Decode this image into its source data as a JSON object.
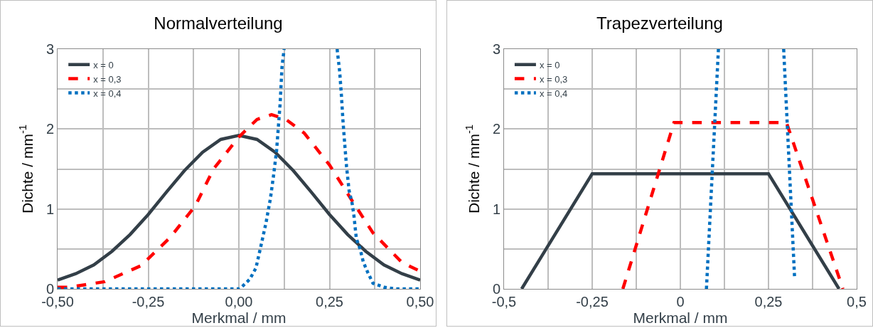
{
  "chart_data": [
    {
      "type": "line",
      "title": "Normalverteilung",
      "xlabel": "Merkmal / mm",
      "ylabel": "Dichte / mm$^{-1}$",
      "xlim": [
        -0.5,
        0.5
      ],
      "ylim": [
        0,
        3
      ],
      "xticks": [
        {
          "value": -0.5,
          "label": "-0,50"
        },
        {
          "value": -0.375,
          "label": null
        },
        {
          "value": -0.25,
          "label": "-0,25"
        },
        {
          "value": -0.125,
          "label": null
        },
        {
          "value": 0,
          "label": "0,00"
        },
        {
          "value": 0.125,
          "label": null
        },
        {
          "value": 0.25,
          "label": "0,25"
        },
        {
          "value": 0.375,
          "label": null
        },
        {
          "value": 0.5,
          "label": "0,50"
        }
      ],
      "yticks": [
        0,
        {
          "value": 0.5,
          "label": null
        },
        1,
        {
          "value": 1.5,
          "label": null
        },
        2,
        {
          "value": 2.5,
          "label": null
        },
        3
      ],
      "grid": true,
      "legend": "top left",
      "marker": "none",
      "series": [
        {
          "name": "x = 0",
          "color": "#333f48",
          "line_style": "solid",
          "x": [
            -0.5,
            -0.45,
            -0.4,
            -0.35,
            -0.3,
            -0.25,
            -0.2,
            -0.15,
            -0.1,
            -0.05,
            0,
            0.05,
            0.1,
            0.15,
            0.2,
            0.25,
            0.3,
            0.35,
            0.4,
            0.45,
            0.5
          ],
          "values": [
            0.11,
            0.19,
            0.3,
            0.47,
            0.68,
            0.93,
            1.21,
            1.48,
            1.71,
            1.87,
            1.92,
            1.87,
            1.71,
            1.48,
            1.21,
            0.93,
            0.68,
            0.47,
            0.3,
            0.19,
            0.11
          ]
        },
        {
          "name": "x = 0,3",
          "color": "#ff0000",
          "line_style": "dashed",
          "x": [
            -0.5,
            -0.47,
            -0.37,
            -0.27,
            -0.19,
            -0.12,
            -0.07,
            0,
            0.05,
            0.09,
            0.13,
            0.18,
            0.25,
            0.31,
            0.37,
            0.45,
            0.5
          ],
          "values": [
            0.02,
            0.02,
            0.09,
            0.29,
            0.64,
            1.04,
            1.5,
            1.9,
            2.12,
            2.18,
            2.12,
            1.95,
            1.55,
            1.12,
            0.7,
            0.33,
            0.22
          ]
        },
        {
          "name": "x = 0,4",
          "color": "#0070c0",
          "line_style": "dotted",
          "x": [
            -0.5,
            -0.4,
            -0.3,
            -0.2,
            -0.1,
            0,
            0.007,
            0.03,
            0.047,
            0.061,
            0.075,
            0.087,
            0.096,
            0.104,
            0.109,
            0.114,
            0.119,
            0.123,
            0.125,
            0.2,
            0.271,
            0.278,
            0.283,
            0.287,
            0.292,
            0.297,
            0.304,
            0.312,
            0.317,
            0.324,
            0.335,
            0.343,
            0.355,
            0.37,
            0.401,
            0.431,
            0.5
          ],
          "values": [
            0,
            0,
            0,
            0,
            0,
            0,
            0.02,
            0.12,
            0.26,
            0.54,
            0.83,
            1.13,
            1.43,
            1.73,
            2.03,
            2.33,
            2.78,
            2.93,
            3,
            null,
            3,
            2.72,
            2.41,
            2.11,
            1.81,
            1.53,
            1.23,
            1.08,
            0.93,
            0.63,
            0.49,
            0.34,
            0.21,
            0.07,
            0.02,
            0,
            0
          ]
        }
      ]
    },
    {
      "type": "line",
      "title": "Trapezverteilung",
      "xlabel": "Merkmal / mm",
      "ylabel": "Dichte / mm$^{-1}$",
      "xlim": [
        -0.5,
        0.5
      ],
      "ylim": [
        0,
        3
      ],
      "xticks": [
        {
          "value": -0.5,
          "label": "-0,5"
        },
        {
          "value": -0.375,
          "label": null
        },
        {
          "value": -0.25,
          "label": "-0,25"
        },
        {
          "value": -0.125,
          "label": null
        },
        0,
        {
          "value": 0.125,
          "label": null
        },
        {
          "value": 0.25,
          "label": "0,25"
        },
        {
          "value": 0.375,
          "label": null
        },
        {
          "value": 0.5,
          "label": "0,5"
        }
      ],
      "yticks": [
        0,
        {
          "value": 0.5,
          "label": null
        },
        1,
        {
          "value": 1.5,
          "label": null
        },
        2,
        {
          "value": 2.5,
          "label": null
        },
        3
      ],
      "grid": true,
      "legend": "top left",
      "marker": "none",
      "series": [
        {
          "name": "x = 0",
          "color": "#333f48",
          "line_style": "solid",
          "x": [
            -0.45,
            -0.25,
            0.25,
            0.45
          ],
          "values": [
            0,
            1.44,
            1.44,
            0
          ]
        },
        {
          "name": "x = 0,3",
          "color": "#ff0000",
          "line_style": "dashed",
          "x": [
            -0.163,
            -0.018,
            0.301,
            0.461
          ],
          "values": [
            0,
            2.08,
            2.08,
            0
          ]
        },
        {
          "name": "x = 0,4",
          "color": "#0070c0",
          "line_style": "dotted",
          "x": [
            0.074,
            0.108,
            0.2,
            0.293,
            0.324
          ],
          "values": [
            0,
            3,
            null,
            3,
            0.14
          ]
        }
      ]
    }
  ]
}
